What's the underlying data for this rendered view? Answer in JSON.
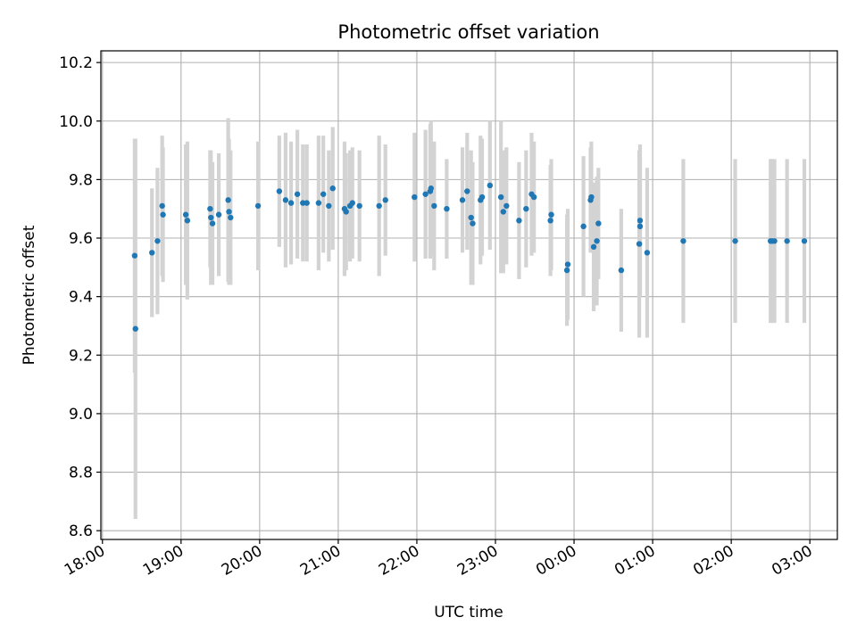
{
  "chart_data": {
    "type": "scatter",
    "title": "Photometric offset variation",
    "xlabel": "UTC time",
    "ylabel": "Photometric offset",
    "x_ticks": [
      "18:00",
      "19:00",
      "20:00",
      "21:00",
      "22:00",
      "23:00",
      "00:00",
      "01:00",
      "02:00",
      "03:00"
    ],
    "x_tick_hours": [
      18,
      19,
      20,
      21,
      22,
      23,
      24,
      25,
      26,
      27
    ],
    "y_ticks": [
      8.6,
      8.8,
      9.0,
      9.2,
      9.4,
      9.6,
      9.8,
      10.0,
      10.2
    ],
    "xlim_hours": [
      17.98,
      27.35
    ],
    "ylim": [
      8.57,
      10.24
    ],
    "grid": true,
    "colors": {
      "point": "#1f77b4",
      "errorbar": "#d3d3d3"
    },
    "series": [
      {
        "x_hours": [
          18.41,
          18.42,
          18.63,
          18.7,
          18.76,
          18.77,
          19.06,
          19.08,
          19.37,
          19.38,
          19.4,
          19.48,
          19.6,
          19.61,
          19.63,
          19.98,
          20.25,
          20.33,
          20.4,
          20.48,
          20.55,
          20.6,
          20.75,
          20.81,
          20.88,
          20.93,
          21.08,
          21.1,
          21.15,
          21.18,
          21.27,
          21.52,
          21.6,
          21.97,
          22.11,
          22.17,
          22.18,
          22.22,
          22.38,
          22.58,
          22.64,
          22.69,
          22.71,
          22.81,
          22.83,
          22.93,
          23.07,
          23.1,
          23.14,
          23.3,
          23.39,
          23.46,
          23.49,
          23.7,
          23.71,
          23.91,
          23.92,
          24.12,
          24.21,
          24.22,
          24.25,
          24.29,
          24.31,
          24.6,
          24.83,
          24.84,
          24.84,
          24.93,
          25.39,
          26.05,
          26.5,
          26.52,
          26.55,
          26.71,
          26.93
        ],
        "y": [
          9.54,
          9.29,
          9.55,
          9.59,
          9.71,
          9.68,
          9.68,
          9.66,
          9.7,
          9.67,
          9.65,
          9.68,
          9.73,
          9.69,
          9.67,
          9.71,
          9.76,
          9.73,
          9.72,
          9.75,
          9.72,
          9.72,
          9.72,
          9.75,
          9.71,
          9.77,
          9.7,
          9.69,
          9.71,
          9.72,
          9.71,
          9.71,
          9.73,
          9.74,
          9.75,
          9.76,
          9.77,
          9.71,
          9.7,
          9.73,
          9.76,
          9.67,
          9.65,
          9.73,
          9.74,
          9.78,
          9.74,
          9.69,
          9.71,
          9.66,
          9.7,
          9.75,
          9.74,
          9.66,
          9.68,
          9.49,
          9.51,
          9.64,
          9.73,
          9.74,
          9.57,
          9.59,
          9.65,
          9.49,
          9.58,
          9.66,
          9.64,
          9.55,
          9.59,
          9.59,
          9.59,
          9.59,
          9.59,
          9.59,
          9.59
        ],
        "y_err": [
          0.4,
          0.65,
          0.22,
          0.25,
          0.24,
          0.23,
          0.24,
          0.27,
          0.2,
          0.23,
          0.21,
          0.21,
          0.28,
          0.25,
          0.23,
          0.22,
          0.19,
          0.23,
          0.21,
          0.22,
          0.2,
          0.2,
          0.23,
          0.2,
          0.19,
          0.21,
          0.23,
          0.2,
          0.19,
          0.19,
          0.19,
          0.24,
          0.19,
          0.22,
          0.22,
          0.23,
          0.23,
          0.22,
          0.17,
          0.18,
          0.2,
          0.23,
          0.21,
          0.22,
          0.2,
          0.22,
          0.26,
          0.21,
          0.2,
          0.2,
          0.2,
          0.21,
          0.19,
          0.19,
          0.19,
          0.19,
          0.19,
          0.24,
          0.18,
          0.19,
          0.22,
          0.22,
          0.19,
          0.21,
          0.32,
          0.26,
          0.23,
          0.29,
          0.28,
          0.28,
          0.28,
          0.28,
          0.28,
          0.28,
          0.28
        ]
      }
    ]
  }
}
